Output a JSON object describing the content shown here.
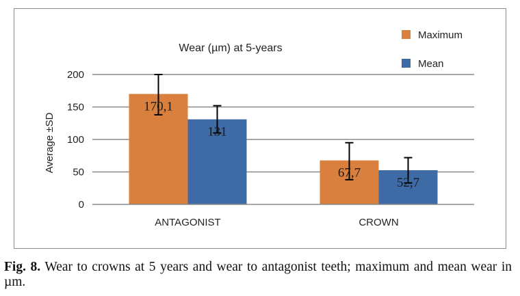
{
  "chart_data": {
    "type": "bar",
    "title": "Wear (µm) at 5-years",
    "xlabel": "",
    "ylabel": "Average ±SD",
    "ylim": [
      0,
      200
    ],
    "yticks": [
      "0",
      "50",
      "100",
      "150",
      "200"
    ],
    "grid": true,
    "legend_position": "top-right",
    "categories": [
      "ANTAGONIST",
      "CROWN"
    ],
    "series": [
      {
        "name": "Maximum",
        "color": "#d9803e",
        "values": [
          170.1,
          67.7
        ],
        "value_labels": [
          "170,1",
          "67,7"
        ],
        "error_low": [
          138,
          38
        ],
        "error_high": [
          200,
          95
        ]
      },
      {
        "name": "Mean",
        "color": "#3e6aa6",
        "values": [
          131,
          52.7
        ],
        "value_labels": [
          "131",
          "52,7"
        ],
        "error_low": [
          110,
          33
        ],
        "error_high": [
          152,
          72
        ]
      }
    ]
  },
  "caption": {
    "label": "Fig. 8.",
    "text": " Wear to crowns at 5 years and wear to antagonist teeth; maximum and mean wear in µm."
  }
}
